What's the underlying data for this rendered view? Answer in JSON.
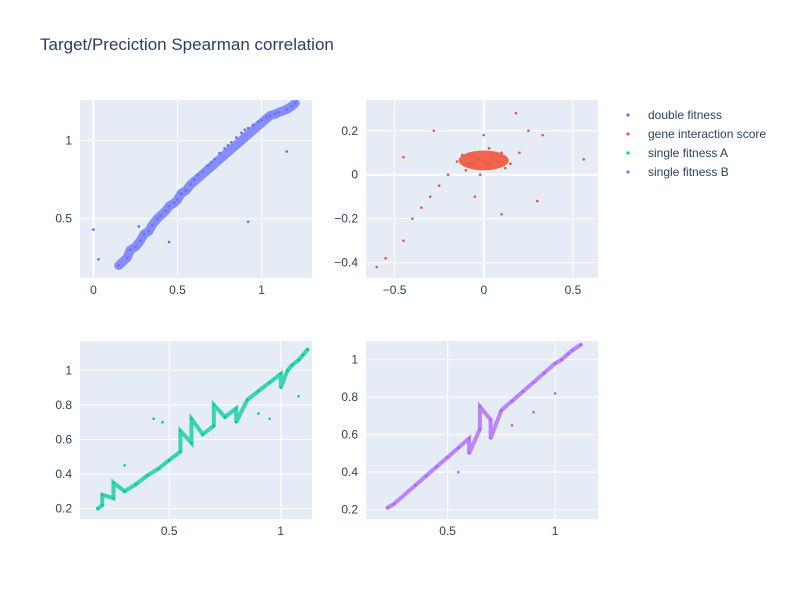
{
  "title": "Target/Preciction Spearman correlation",
  "legend": {
    "placement": "right",
    "entries": [
      {
        "name": "double fitness",
        "color": "#636efa"
      },
      {
        "name": "gene interaction score",
        "color": "#EF553B"
      },
      {
        "name": "single fitness A",
        "color": "#00cc96"
      },
      {
        "name": "single fitness B",
        "color": "#ab63fa"
      }
    ]
  },
  "colors": {
    "plot_bg": "#E5ECF6",
    "grid": "#ffffff",
    "text": "#2a3f5f"
  },
  "chart_data": [
    {
      "type": "scatter",
      "series": "double fitness",
      "color": "#636efa",
      "xlim": [
        -0.08,
        1.3
      ],
      "ylim": [
        0.12,
        1.26
      ],
      "xticks": [
        0,
        0.5,
        1
      ],
      "xtick_labels": [
        "0",
        "0.5",
        "1"
      ],
      "yticks": [
        0.5,
        1
      ],
      "ytick_labels": [
        "0.5",
        "1"
      ],
      "grid": true,
      "points": [
        [
          0.0,
          0.43
        ],
        [
          0.03,
          0.24
        ],
        [
          0.15,
          0.2
        ],
        [
          0.2,
          0.25
        ],
        [
          0.22,
          0.3
        ],
        [
          0.25,
          0.32
        ],
        [
          0.28,
          0.36
        ],
        [
          0.3,
          0.4
        ],
        [
          0.33,
          0.42
        ],
        [
          0.35,
          0.46
        ],
        [
          0.38,
          0.5
        ],
        [
          0.4,
          0.52
        ],
        [
          0.43,
          0.55
        ],
        [
          0.45,
          0.58
        ],
        [
          0.48,
          0.6
        ],
        [
          0.5,
          0.62
        ],
        [
          0.52,
          0.66
        ],
        [
          0.55,
          0.68
        ],
        [
          0.58,
          0.72
        ],
        [
          0.6,
          0.75
        ],
        [
          0.62,
          0.78
        ],
        [
          0.65,
          0.8
        ],
        [
          0.68,
          0.84
        ],
        [
          0.7,
          0.86
        ],
        [
          0.72,
          0.88
        ],
        [
          0.75,
          0.92
        ],
        [
          0.78,
          0.95
        ],
        [
          0.8,
          0.97
        ],
        [
          0.82,
          0.99
        ],
        [
          0.85,
          1.02
        ],
        [
          0.88,
          1.05
        ],
        [
          0.9,
          1.07
        ],
        [
          0.92,
          1.08
        ],
        [
          0.95,
          1.1
        ],
        [
          0.98,
          1.12
        ],
        [
          1.0,
          1.13
        ],
        [
          1.03,
          1.15
        ],
        [
          1.05,
          1.16
        ],
        [
          1.08,
          1.17
        ],
        [
          1.1,
          1.18
        ],
        [
          1.15,
          1.2
        ],
        [
          1.18,
          1.22
        ],
        [
          1.2,
          1.24
        ],
        [
          0.92,
          0.48
        ],
        [
          1.15,
          0.93
        ],
        [
          0.27,
          0.45
        ],
        [
          0.45,
          0.35
        ]
      ]
    },
    {
      "type": "scatter",
      "series": "gene interaction score",
      "color": "#EF553B",
      "xlim": [
        -0.66,
        0.64
      ],
      "ylim": [
        -0.47,
        0.34
      ],
      "xticks": [
        -0.5,
        0,
        0.5
      ],
      "xtick_labels": [
        "−0.5",
        "0",
        "0.5"
      ],
      "yticks": [
        -0.4,
        -0.2,
        0,
        0.2
      ],
      "ytick_labels": [
        "−0.4",
        "−0.2",
        "0",
        "0.2"
      ],
      "grid": true,
      "points": [
        [
          0.0,
          0.06
        ],
        [
          0.02,
          0.05
        ],
        [
          -0.03,
          0.07
        ],
        [
          0.05,
          0.08
        ],
        [
          -0.05,
          0.04
        ],
        [
          0.08,
          0.06
        ],
        [
          -0.08,
          0.05
        ],
        [
          0.1,
          0.1
        ],
        [
          -0.1,
          0.02
        ],
        [
          0.12,
          0.03
        ],
        [
          -0.12,
          0.09
        ],
        [
          0.03,
          0.12
        ],
        [
          -0.02,
          0.0
        ],
        [
          0.15,
          0.05
        ],
        [
          -0.15,
          0.06
        ],
        [
          0.0,
          0.18
        ],
        [
          -0.2,
          0.0
        ],
        [
          -0.25,
          -0.05
        ],
        [
          -0.3,
          -0.1
        ],
        [
          -0.35,
          -0.15
        ],
        [
          -0.4,
          -0.2
        ],
        [
          -0.45,
          -0.3
        ],
        [
          -0.55,
          -0.38
        ],
        [
          -0.6,
          -0.42
        ],
        [
          0.2,
          0.1
        ],
        [
          0.25,
          0.2
        ],
        [
          0.33,
          0.18
        ],
        [
          0.18,
          0.28
        ],
        [
          0.56,
          0.07
        ],
        [
          -0.45,
          0.08
        ],
        [
          0.3,
          -0.12
        ],
        [
          -0.05,
          -0.1
        ],
        [
          0.1,
          -0.18
        ],
        [
          -0.28,
          0.2
        ]
      ]
    },
    {
      "type": "scatter",
      "series": "single fitness A",
      "color": "#00cc96",
      "xlim": [
        0.1,
        1.14
      ],
      "ylim": [
        0.14,
        1.17
      ],
      "xticks": [
        0.5,
        1
      ],
      "xtick_labels": [
        "0.5",
        "1"
      ],
      "yticks": [
        0.2,
        0.4,
        0.6,
        0.8,
        1
      ],
      "ytick_labels": [
        "0.2",
        "0.4",
        "0.6",
        "0.8",
        "1"
      ],
      "grid": true,
      "points": [
        [
          0.18,
          0.2
        ],
        [
          0.2,
          0.22
        ],
        [
          0.25,
          0.26
        ],
        [
          0.3,
          0.3
        ],
        [
          0.35,
          0.34
        ],
        [
          0.4,
          0.39
        ],
        [
          0.45,
          0.43
        ],
        [
          0.5,
          0.48
        ],
        [
          0.55,
          0.53
        ],
        [
          0.6,
          0.58
        ],
        [
          0.65,
          0.63
        ],
        [
          0.7,
          0.68
        ],
        [
          0.75,
          0.73
        ],
        [
          0.8,
          0.78
        ],
        [
          0.85,
          0.83
        ],
        [
          0.9,
          0.88
        ],
        [
          0.95,
          0.93
        ],
        [
          1.0,
          0.98
        ],
        [
          1.03,
          1.0
        ],
        [
          1.05,
          1.03
        ],
        [
          1.08,
          1.06
        ],
        [
          1.1,
          1.09
        ],
        [
          1.12,
          1.12
        ],
        [
          0.43,
          0.72
        ],
        [
          0.47,
          0.7
        ],
        [
          0.3,
          0.45
        ],
        [
          0.55,
          0.65
        ],
        [
          0.6,
          0.72
        ],
        [
          0.7,
          0.8
        ],
        [
          0.8,
          0.7
        ],
        [
          0.9,
          0.75
        ],
        [
          0.95,
          0.72
        ],
        [
          1.0,
          0.9
        ],
        [
          1.08,
          0.85
        ],
        [
          0.25,
          0.35
        ],
        [
          0.2,
          0.28
        ]
      ]
    },
    {
      "type": "scatter",
      "series": "single fitness B",
      "color": "#ab63fa",
      "xlim": [
        0.12,
        1.2
      ],
      "ylim": [
        0.15,
        1.1
      ],
      "xticks": [
        0.5,
        1
      ],
      "xtick_labels": [
        "0.5",
        "1"
      ],
      "yticks": [
        0.2,
        0.4,
        0.6,
        0.8,
        1
      ],
      "ytick_labels": [
        "0.2",
        "0.4",
        "0.6",
        "0.8",
        "1"
      ],
      "grid": true,
      "points": [
        [
          0.22,
          0.21
        ],
        [
          0.25,
          0.23
        ],
        [
          0.35,
          0.33
        ],
        [
          0.4,
          0.38
        ],
        [
          0.45,
          0.43
        ],
        [
          0.5,
          0.48
        ],
        [
          0.55,
          0.53
        ],
        [
          0.6,
          0.58
        ],
        [
          0.65,
          0.63
        ],
        [
          0.7,
          0.68
        ],
        [
          0.75,
          0.73
        ],
        [
          0.8,
          0.78
        ],
        [
          0.85,
          0.83
        ],
        [
          0.9,
          0.88
        ],
        [
          0.95,
          0.93
        ],
        [
          1.0,
          0.98
        ],
        [
          1.03,
          1.0
        ],
        [
          1.06,
          1.03
        ],
        [
          1.08,
          1.05
        ],
        [
          0.55,
          0.4
        ],
        [
          0.6,
          0.5
        ],
        [
          0.7,
          0.58
        ],
        [
          0.8,
          0.65
        ],
        [
          0.9,
          0.72
        ],
        [
          1.0,
          0.82
        ],
        [
          0.65,
          0.75
        ],
        [
          1.12,
          1.08
        ]
      ]
    }
  ]
}
